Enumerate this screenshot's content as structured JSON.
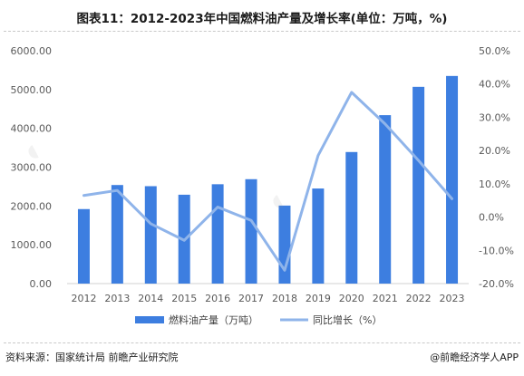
{
  "header": {
    "title": "图表11：2012-2023年中国燃料油产量及增长率(单位：万吨，%)"
  },
  "chart_data": {
    "type": "bar",
    "categories": [
      "2012",
      "2013",
      "2014",
      "2015",
      "2016",
      "2017",
      "2018",
      "2019",
      "2020",
      "2021",
      "2022",
      "2023"
    ],
    "series": [
      {
        "name": "燃料油产量（万吨）",
        "type": "bar",
        "axis": "left",
        "color": "#3d7ee0",
        "values": [
          1920,
          2540,
          2510,
          2290,
          2560,
          2690,
          2010,
          2450,
          3390,
          4340,
          5070,
          5350
        ]
      },
      {
        "name": "同比增长（%）",
        "type": "line",
        "axis": "right",
        "color": "#8fb4ea",
        "values": [
          6.5,
          8.0,
          -2.0,
          -7.0,
          3.0,
          -1.0,
          -16.0,
          18.5,
          37.5,
          28.0,
          17.0,
          5.5
        ]
      }
    ],
    "y_left": {
      "ylim": [
        0,
        6000
      ],
      "ticks": [
        "0.00",
        "1000.00",
        "2000.00",
        "3000.00",
        "4000.00",
        "5000.00",
        "6000.00"
      ]
    },
    "y_right": {
      "ylim": [
        -20,
        50
      ],
      "ticks": [
        "-20.0%",
        "-10.0%",
        "0.0%",
        "10.0%",
        "20.0%",
        "30.0%",
        "40.0%",
        "50.0%"
      ]
    },
    "grid": false,
    "legend_position": "bottom"
  },
  "footer": {
    "source": "资料来源：国家统计局 前瞻产业研究院",
    "brand": "@前瞻经济学人APP"
  },
  "colors": {
    "bar": "#3d7ee0",
    "line": "#8fb4ea"
  }
}
